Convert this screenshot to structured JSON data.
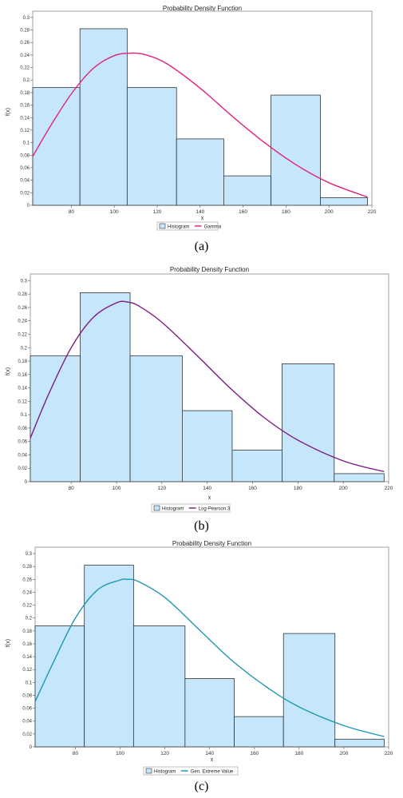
{
  "colors": {
    "bar_fill": "#c6e6fb",
    "bar_stroke": "#333333"
  },
  "chart_data": [
    {
      "type": "bar",
      "title": "Probability Density Function",
      "xlabel": "x",
      "ylabel": "f(x)",
      "caption": "(a)",
      "xlim": [
        62,
        220
      ],
      "ylim": [
        0,
        0.31
      ],
      "xticks": [
        80,
        100,
        120,
        140,
        160,
        180,
        200,
        220
      ],
      "xtick_labels": [
        "80",
        "100",
        "120",
        "140",
        "160",
        "180",
        "200",
        "220"
      ],
      "yticks": [
        0,
        0.02,
        0.04,
        0.06,
        0.08,
        0.1,
        0.12,
        0.14,
        0.16,
        0.18,
        0.2,
        0.22,
        0.24,
        0.26,
        0.28,
        0.3
      ],
      "ytick_labels": [
        "0",
        "0.02",
        "0.04",
        "0.06",
        "0.08",
        "0.1",
        "0.12",
        "0.14",
        "0.16",
        "0.18",
        "0.2",
        "0.22",
        "0.24",
        "0.26",
        "0.28",
        "0.3"
      ],
      "bins": [
        [
          62,
          84
        ],
        [
          84,
          106
        ],
        [
          106,
          129
        ],
        [
          129,
          151
        ],
        [
          151,
          173
        ],
        [
          173,
          196
        ],
        [
          196,
          218
        ]
      ],
      "series": [
        {
          "name": "Histogram",
          "kind": "histogram",
          "values": [
            0.188,
            0.282,
            0.188,
            0.106,
            0.047,
            0.176,
            0.012
          ]
        },
        {
          "name": "Gamma",
          "kind": "curve",
          "color": "#e0237f",
          "x": [
            62,
            70,
            80,
            90,
            100,
            108,
            115,
            125,
            140,
            155,
            170,
            185,
            200,
            218
          ],
          "y": [
            0.078,
            0.125,
            0.178,
            0.218,
            0.239,
            0.243,
            0.24,
            0.225,
            0.187,
            0.142,
            0.1,
            0.064,
            0.036,
            0.013
          ]
        }
      ]
    },
    {
      "type": "bar",
      "title": "Probability Density Function",
      "xlabel": "x",
      "ylabel": "f(x)",
      "caption": "(b)",
      "xlim": [
        62,
        220
      ],
      "ylim": [
        0,
        0.31
      ],
      "xticks": [
        80,
        100,
        120,
        140,
        160,
        180,
        200,
        220
      ],
      "xtick_labels": [
        "80",
        "100",
        "120",
        "140",
        "160",
        "180",
        "200",
        "220"
      ],
      "yticks": [
        0,
        0.02,
        0.04,
        0.06,
        0.08,
        0.1,
        0.12,
        0.14,
        0.16,
        0.18,
        0.2,
        0.22,
        0.24,
        0.26,
        0.28,
        0.3
      ],
      "ytick_labels": [
        "0",
        "0.02",
        "0.04",
        "0.06",
        "0.08",
        "0.1",
        "0.12",
        "0.14",
        "0.16",
        "0.18",
        "0.2",
        "0.22",
        "0.24",
        "0.26",
        "0.28",
        "0.3"
      ],
      "bins": [
        [
          62,
          84
        ],
        [
          84,
          106
        ],
        [
          106,
          129
        ],
        [
          129,
          151
        ],
        [
          151,
          173
        ],
        [
          173,
          196
        ],
        [
          196,
          218
        ]
      ],
      "series": [
        {
          "name": "Histogram",
          "kind": "histogram",
          "values": [
            0.188,
            0.282,
            0.188,
            0.106,
            0.047,
            0.176,
            0.012
          ]
        },
        {
          "name": "Log-Pearson 3",
          "kind": "curve",
          "color": "#7a1c82",
          "x": [
            62,
            70,
            80,
            90,
            100,
            105,
            110,
            120,
            135,
            150,
            165,
            180,
            200,
            218
          ],
          "y": [
            0.065,
            0.13,
            0.2,
            0.246,
            0.267,
            0.268,
            0.262,
            0.238,
            0.19,
            0.14,
            0.096,
            0.062,
            0.031,
            0.015
          ]
        }
      ]
    },
    {
      "type": "bar",
      "title": "Probability Density Function",
      "xlabel": "x",
      "ylabel": "f(x)",
      "caption": "(c)",
      "xlim": [
        62,
        220
      ],
      "ylim": [
        0,
        0.31
      ],
      "xticks": [
        80,
        100,
        120,
        140,
        160,
        180,
        200,
        220
      ],
      "xtick_labels": [
        "80",
        "100",
        "120",
        "140",
        "160",
        "180",
        "200",
        "220"
      ],
      "yticks": [
        0,
        0.02,
        0.04,
        0.06,
        0.08,
        0.1,
        0.12,
        0.14,
        0.16,
        0.18,
        0.2,
        0.22,
        0.24,
        0.26,
        0.28,
        0.3
      ],
      "ytick_labels": [
        "0",
        "0.02",
        "0.04",
        "0.06",
        "0.08",
        "0.1",
        "0.12",
        "0.14",
        "0.16",
        "0.18",
        "0.2",
        "0.22",
        "0.24",
        "0.26",
        "0.28",
        "0.3"
      ],
      "bins": [
        [
          62,
          84
        ],
        [
          84,
          106
        ],
        [
          106,
          129
        ],
        [
          129,
          151
        ],
        [
          151,
          173
        ],
        [
          173,
          196
        ],
        [
          196,
          218
        ]
      ],
      "series": [
        {
          "name": "Histogram",
          "kind": "histogram",
          "values": [
            0.188,
            0.282,
            0.188,
            0.106,
            0.047,
            0.176,
            0.012
          ]
        },
        {
          "name": "Gen. Extreme Value",
          "kind": "curve",
          "color": "#1f97b0",
          "x": [
            62,
            70,
            80,
            90,
            100,
            103,
            108,
            120,
            135,
            150,
            165,
            180,
            200,
            218
          ],
          "y": [
            0.07,
            0.13,
            0.2,
            0.244,
            0.259,
            0.26,
            0.257,
            0.232,
            0.183,
            0.134,
            0.094,
            0.062,
            0.033,
            0.016
          ]
        }
      ]
    }
  ]
}
